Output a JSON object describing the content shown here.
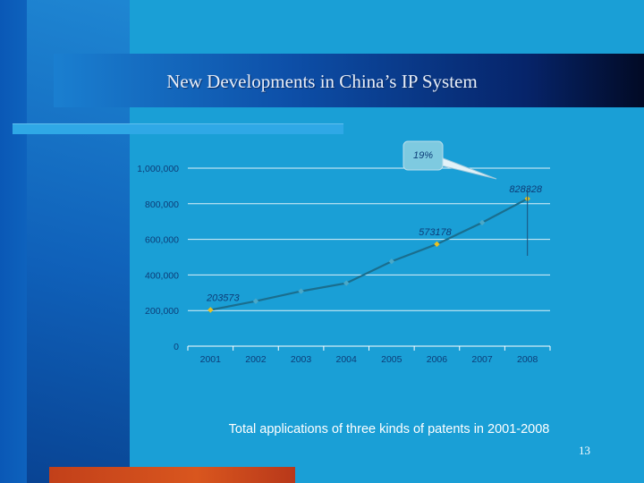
{
  "slide": {
    "title": "New Developments in China’s IP System",
    "caption": "Total applications of three kinds of patents in 2001-2008",
    "page_number": "13"
  },
  "chart_data": {
    "type": "line",
    "x": [
      "2001",
      "2002",
      "2003",
      "2004",
      "2005",
      "2006",
      "2007",
      "2008"
    ],
    "series": [
      {
        "values": [
          203573,
          252631,
          308487,
          353807,
          476264,
          573178,
          694153,
          828328
        ]
      }
    ],
    "y_tick_labels": [
      "0",
      "200,000",
      "400,000",
      "600,000",
      "800,000",
      "1,000,000"
    ],
    "y_tick_values": [
      0,
      200000,
      400000,
      600000,
      800000,
      1000000
    ],
    "ylim": [
      0,
      1000000
    ],
    "grid": "horizontal",
    "data_labels": [
      {
        "index": 0,
        "text": "203573"
      },
      {
        "index": 5,
        "text": "573178"
      },
      {
        "index": 7,
        "text": "828328"
      }
    ],
    "callout": {
      "text": "19%",
      "target_index": 7
    },
    "colors": {
      "line": "#1a6e8e",
      "marker": "#4aa8c8",
      "highlight_marker": "#e8c020",
      "grid": "#ffffff",
      "callout_fill": "#7ecae0"
    }
  }
}
